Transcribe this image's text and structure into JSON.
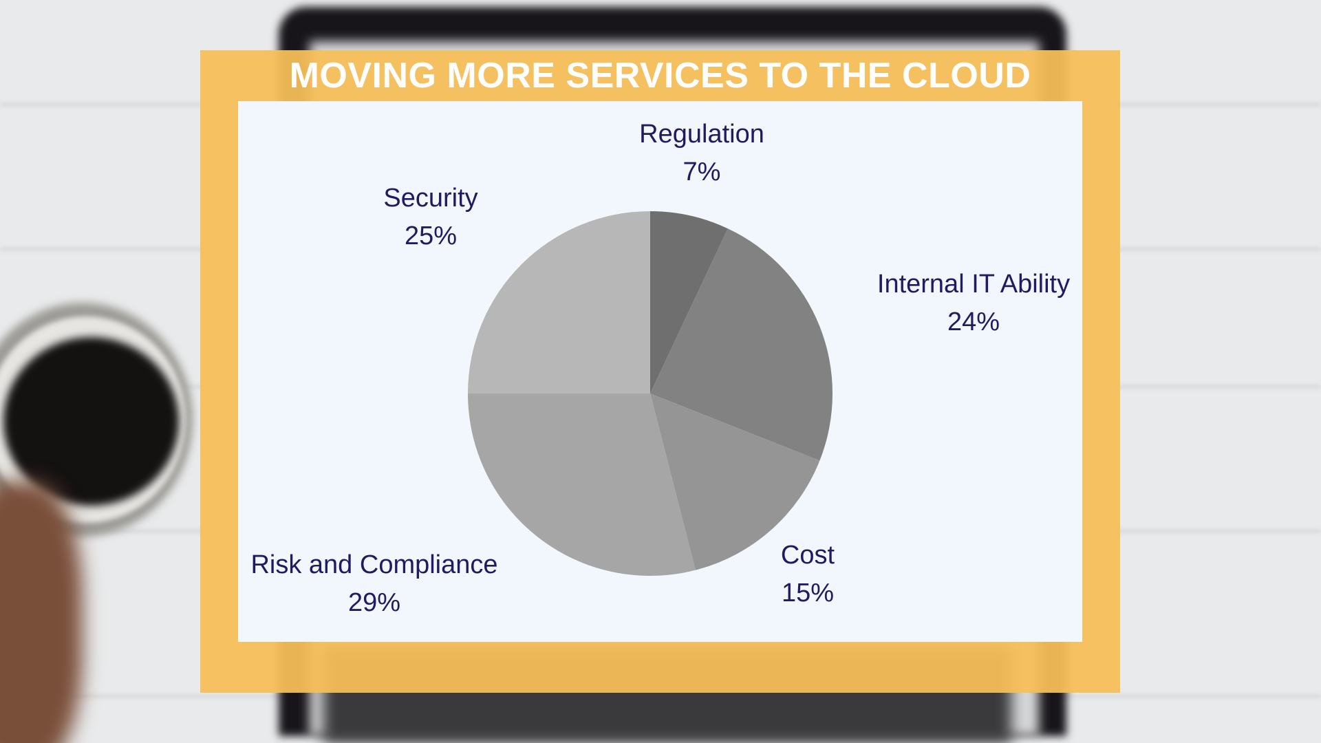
{
  "chart_data": {
    "type": "pie",
    "title": "MOVING MORE SERVICES TO THE CLOUD",
    "start": "12 o'clock",
    "direction": "clockwise",
    "slices": [
      {
        "label": "Regulation",
        "value": 7,
        "value_label": "7%",
        "color": "#6f6f6f"
      },
      {
        "label": "Internal IT Ability",
        "value": 24,
        "value_label": "24%",
        "color": "#828282"
      },
      {
        "label": "Cost",
        "value": 15,
        "value_label": "15%",
        "color": "#959595"
      },
      {
        "label": "Risk and Compliance",
        "value": 29,
        "value_label": "29%",
        "color": "#a6a6a6"
      },
      {
        "label": "Security",
        "value": 25,
        "value_label": "25%",
        "color": "#b7b7b7"
      }
    ],
    "label_color": "#211a60",
    "frame_color": "#f6be58",
    "panel_color": "#f1f7fc"
  }
}
